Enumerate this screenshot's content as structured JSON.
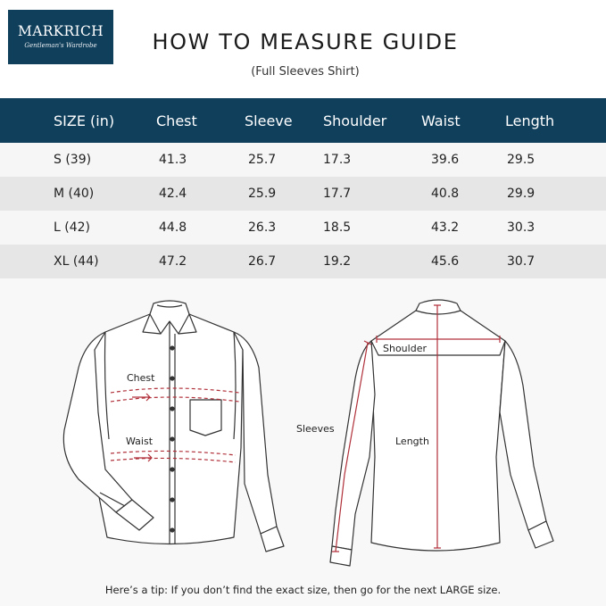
{
  "brand": {
    "name": "MARKRICH",
    "tagline": "Gentleman's Wardrobe"
  },
  "title": "HOW TO MEASURE GUIDE",
  "subtitle": "(Full Sleeves Shirt)",
  "table": {
    "headers": [
      "SIZE (in)",
      "Chest",
      "Sleeve",
      "Shoulder",
      "Waist",
      "Length"
    ],
    "rows": [
      [
        "S (39)",
        "41.3",
        "25.7",
        "17.3",
        "39.6",
        "29.5"
      ],
      [
        "M (40)",
        "42.4",
        "25.9",
        "17.7",
        "40.8",
        "29.9"
      ],
      [
        "L (42)",
        "44.8",
        "26.3",
        "18.5",
        "43.2",
        "30.3"
      ],
      [
        "XL (44)",
        "47.2",
        "26.7",
        "19.2",
        "45.6",
        "30.7"
      ]
    ]
  },
  "diagram": {
    "labels": {
      "chest": "Chest",
      "waist": "Waist",
      "sleeves": "Sleeves",
      "shoulder": "Shoulder",
      "length": "Length"
    },
    "measure_color": "#b0303a",
    "icons": [
      "shirt-front-icon",
      "shirt-back-icon"
    ]
  },
  "tip": "Here’s a tip: If you don’t find the exact size, then go for the next LARGE size.",
  "colors": {
    "header_bg": "#103f5c",
    "row_light": "#f6f6f6",
    "row_dark": "#e6e6e6"
  }
}
